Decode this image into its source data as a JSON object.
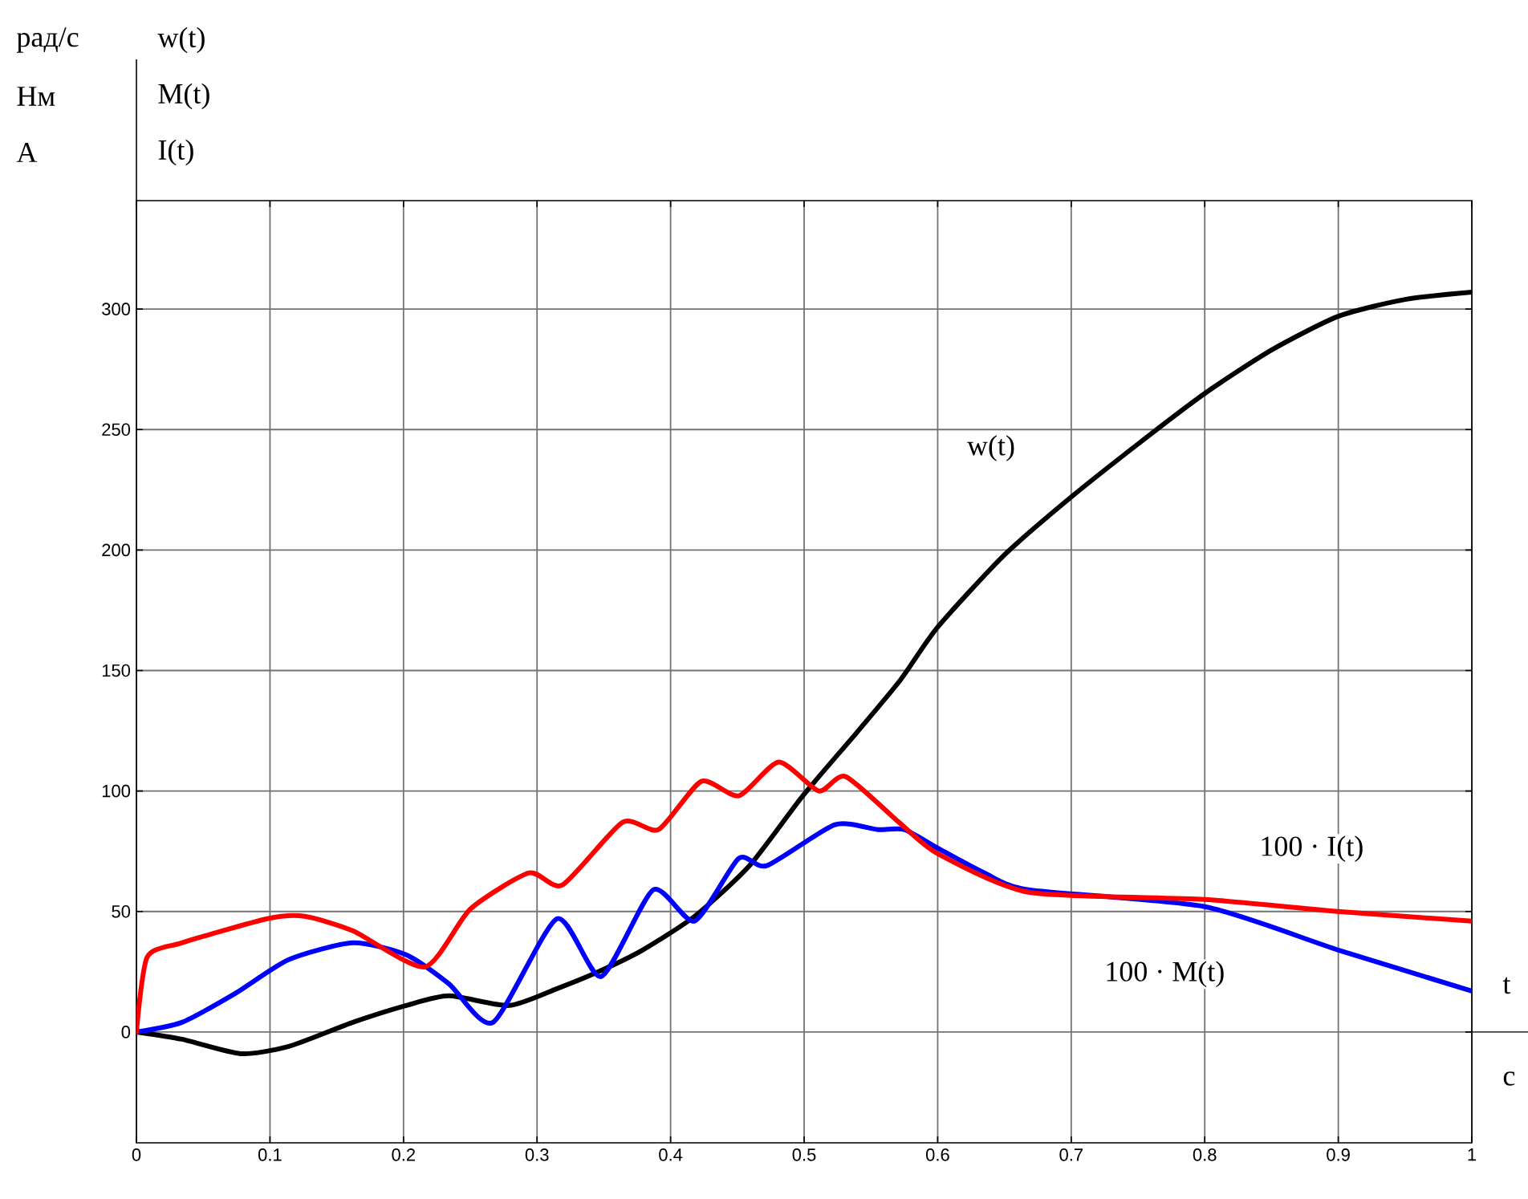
{
  "chart_data": {
    "type": "line",
    "xlabel": "t",
    "annotations": [
      "рад/с",
      "Нм",
      "А",
      "w(t)",
      "M(t)",
      "I(t)",
      "с"
    ],
    "xlim": [
      0,
      1
    ],
    "ylim": [
      -46,
      345
    ],
    "xticks": [
      0,
      0.1,
      0.2,
      0.3,
      0.4,
      0.5,
      0.6,
      0.7,
      0.8,
      0.9,
      1
    ],
    "yticks": [
      0,
      50,
      100,
      150,
      200,
      250,
      300
    ],
    "grid": true,
    "legend": false,
    "marker": "none",
    "line_style": "solid",
    "series": [
      {
        "name": "w(t)",
        "color": "#000000",
        "x": [
          0,
          0.034,
          0.078,
          0.114,
          0.162,
          0.202,
          0.234,
          0.279,
          0.315,
          0.346,
          0.379,
          0.418,
          0.459,
          0.499,
          0.539,
          0.572,
          0.6,
          0.65,
          0.7,
          0.75,
          0.8,
          0.85,
          0.9,
          0.95,
          1.0
        ],
        "values": [
          0,
          -3,
          -9,
          -6,
          4,
          11,
          15,
          11,
          18,
          25,
          34,
          48,
          69,
          98,
          124,
          146,
          168,
          198,
          222,
          244,
          265,
          283,
          297,
          304,
          307
        ]
      },
      {
        "name": "100 · M(t)",
        "color": "#0000ff",
        "x": [
          0,
          0.034,
          0.074,
          0.114,
          0.162,
          0.202,
          0.234,
          0.267,
          0.315,
          0.348,
          0.387,
          0.418,
          0.451,
          0.472,
          0.523,
          0.555,
          0.575,
          0.601,
          0.635,
          0.668,
          0.8,
          0.9,
          1.0
        ],
        "values": [
          0,
          4,
          16,
          30,
          37,
          32,
          20,
          4,
          47,
          23,
          59,
          46,
          72,
          69,
          86,
          84,
          84,
          76,
          66,
          59,
          52,
          34,
          17
        ]
      },
      {
        "name": "100 · I(t)",
        "color": "#ff0000",
        "x": [
          0,
          0.008,
          0.034,
          0.098,
          0.126,
          0.162,
          0.216,
          0.25,
          0.294,
          0.319,
          0.364,
          0.391,
          0.423,
          0.451,
          0.481,
          0.511,
          0.531,
          0.571,
          0.6,
          0.668,
          0.8,
          0.9,
          1.0
        ],
        "values": [
          0,
          31,
          37,
          47,
          48,
          42,
          27,
          51,
          66,
          61,
          87,
          84,
          104,
          98,
          112,
          100,
          106,
          87,
          74,
          58,
          55,
          50,
          46
        ]
      }
    ]
  }
}
